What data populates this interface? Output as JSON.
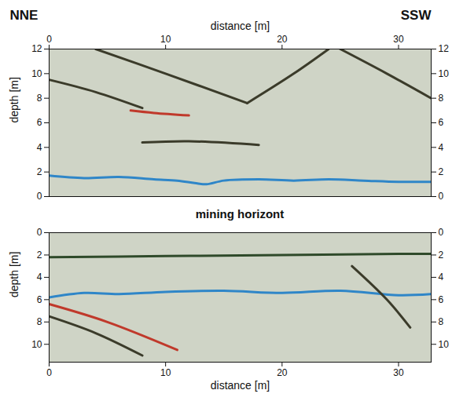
{
  "chart_data": [
    {
      "type": "line",
      "annotations": [
        {
          "text": "NNE",
          "position": "top-left"
        },
        {
          "text": "SSW",
          "position": "top-right"
        }
      ],
      "xlabel": "distance [m]",
      "ylabel": "depth [m]",
      "xlim": [
        0,
        32.8
      ],
      "ylim": [
        0,
        12
      ],
      "xticks": [
        0,
        10,
        20,
        30
      ],
      "yticks": [
        0,
        2,
        4,
        6,
        8,
        10,
        12
      ],
      "series": [
        {
          "color": "#2f86c8",
          "x": [
            0,
            3,
            6,
            9,
            11,
            12.5,
            13.5,
            15,
            18,
            21,
            24,
            27,
            30,
            32.8
          ],
          "values": [
            1.7,
            1.5,
            1.6,
            1.4,
            1.3,
            1.1,
            1.0,
            1.3,
            1.4,
            1.3,
            1.4,
            1.3,
            1.2,
            1.2
          ]
        },
        {
          "color": "#3b3b2a",
          "x": [
            4,
            10,
            17
          ],
          "values": [
            12,
            10,
            7.6
          ]
        },
        {
          "color": "#3b3b2a",
          "x": [
            17,
            21,
            24
          ],
          "values": [
            7.6,
            10,
            12
          ]
        },
        {
          "color": "#3b3b2a",
          "x": [
            25,
            29,
            32.8
          ],
          "values": [
            12,
            10,
            8
          ]
        },
        {
          "color": "#3b3b2a",
          "x": [
            0,
            4,
            8
          ],
          "values": [
            9.5,
            8.5,
            7.2
          ]
        },
        {
          "color": "#3b3b2a",
          "x": [
            8,
            12,
            18
          ],
          "values": [
            4.4,
            4.5,
            4.2
          ]
        },
        {
          "color": "#c0392b",
          "x": [
            7,
            9,
            12
          ],
          "values": [
            7,
            6.8,
            6.6
          ]
        }
      ]
    },
    {
      "type": "line",
      "title": "mining horizont",
      "xlabel": "distance [m]",
      "ylabel": "depth [m]",
      "xlim": [
        0,
        32.8
      ],
      "ylim": [
        11.6,
        0
      ],
      "xticks": [
        0,
        10,
        20,
        30
      ],
      "yticks": [
        0,
        2,
        4,
        6,
        8,
        10
      ],
      "series": [
        {
          "color": "#2f4a2a",
          "x": [
            0,
            10,
            20,
            30,
            32.8
          ],
          "values": [
            2.2,
            2.1,
            2.0,
            1.9,
            1.9
          ]
        },
        {
          "color": "#2f86c8",
          "x": [
            0,
            3,
            6,
            10,
            15,
            20,
            25,
            30,
            32.8
          ],
          "values": [
            5.8,
            5.4,
            5.5,
            5.3,
            5.2,
            5.4,
            5.2,
            5.6,
            5.5
          ]
        },
        {
          "color": "#c0392b",
          "x": [
            0,
            5,
            11
          ],
          "values": [
            6.4,
            8,
            10.5
          ]
        },
        {
          "color": "#3b3b2a",
          "x": [
            0,
            4,
            8
          ],
          "values": [
            7.5,
            9,
            11
          ]
        },
        {
          "color": "#3b3b2a",
          "x": [
            26,
            29,
            31
          ],
          "values": [
            3,
            6,
            8.5
          ]
        }
      ]
    }
  ]
}
